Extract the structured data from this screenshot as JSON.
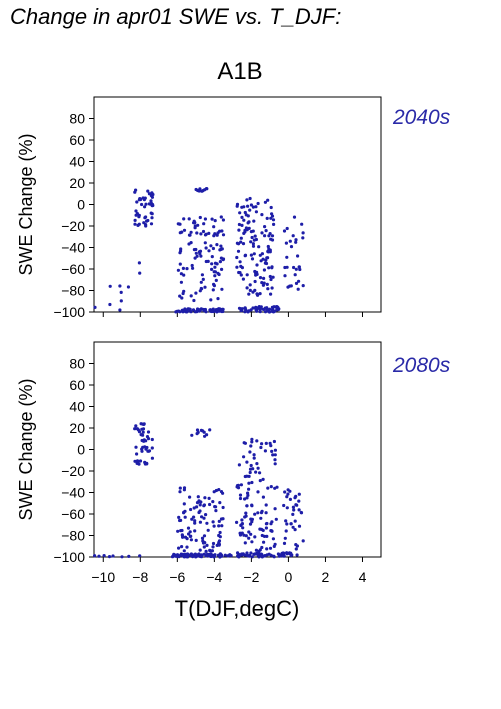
{
  "figure": {
    "title": "Change in apr01 SWE vs. T_DJF:",
    "scenario": "A1B",
    "xlabel": "T(DJF,degC)"
  },
  "colors": {
    "points": "#1e1ea8",
    "period_label": "#2a2aa8",
    "axes": "#000000"
  },
  "chart_data": [
    {
      "type": "scatter",
      "panel_label": "2040s",
      "ylabel": "SWE Change (%)",
      "xlim": [
        -10.5,
        5
      ],
      "ylim": [
        -100,
        100
      ],
      "xticks": [
        -10,
        -8,
        -6,
        -4,
        -2,
        0,
        2,
        4
      ],
      "yticks": [
        -100,
        -80,
        -60,
        -40,
        -20,
        0,
        20,
        40,
        60,
        80
      ],
      "x_ticklabels_shown": false,
      "grid": false,
      "legend": "none",
      "clusters": [
        {
          "x_range": [
            -10.5,
            -8.5
          ],
          "y_range": [
            -100,
            -75
          ],
          "count": 8
        },
        {
          "x_range": [
            -8.3,
            -7.3
          ],
          "y_range": [
            -20,
            14
          ],
          "count": 45
        },
        {
          "x_range": [
            -8.3,
            -8.0
          ],
          "y_range": [
            -85,
            -45
          ],
          "count": 2
        },
        {
          "x_range": [
            -6.2,
            -3.5
          ],
          "y_range": [
            -100,
            -97
          ],
          "count": 60
        },
        {
          "x_range": [
            -6.0,
            -3.5
          ],
          "y_range": [
            -90,
            -10
          ],
          "count": 110
        },
        {
          "x_range": [
            -5.0,
            -4.2
          ],
          "y_range": [
            12,
            15
          ],
          "count": 10
        },
        {
          "x_range": [
            -2.7,
            -0.5
          ],
          "y_range": [
            -100,
            -95
          ],
          "count": 55
        },
        {
          "x_range": [
            -2.8,
            -0.8
          ],
          "y_range": [
            -85,
            6
          ],
          "count": 130
        },
        {
          "x_range": [
            -0.3,
            0.8
          ],
          "y_range": [
            -80,
            -10
          ],
          "count": 30
        }
      ]
    },
    {
      "type": "scatter",
      "panel_label": "2080s",
      "ylabel": "SWE Change (%)",
      "xlim": [
        -10.5,
        5
      ],
      "ylim": [
        -100,
        100
      ],
      "xticks": [
        -10,
        -8,
        -6,
        -4,
        -2,
        0,
        2,
        4
      ],
      "xticklabels": [
        "−10",
        "−8",
        "−6",
        "−4",
        "−2",
        "0",
        "2",
        "4"
      ],
      "yticks": [
        -100,
        -80,
        -60,
        -40,
        -20,
        0,
        20,
        40,
        60,
        80
      ],
      "grid": false,
      "legend": "none",
      "clusters": [
        {
          "x_range": [
            -10.5,
            -8.0
          ],
          "y_range": [
            -100,
            -98
          ],
          "count": 8
        },
        {
          "x_range": [
            -8.3,
            -7.3
          ],
          "y_range": [
            -15,
            25
          ],
          "count": 45
        },
        {
          "x_range": [
            -6.3,
            -3.0
          ],
          "y_range": [
            -100,
            -97
          ],
          "count": 70
        },
        {
          "x_range": [
            -6.0,
            -3.5
          ],
          "y_range": [
            -95,
            -35
          ],
          "count": 100
        },
        {
          "x_range": [
            -5.3,
            -4.2
          ],
          "y_range": [
            12,
            20
          ],
          "count": 10
        },
        {
          "x_range": [
            -2.8,
            0.5
          ],
          "y_range": [
            -100,
            -96
          ],
          "count": 60
        },
        {
          "x_range": [
            -2.8,
            -0.6
          ],
          "y_range": [
            -95,
            10
          ],
          "count": 120
        },
        {
          "x_range": [
            -0.3,
            0.8
          ],
          "y_range": [
            -95,
            -35
          ],
          "count": 35
        }
      ]
    }
  ]
}
